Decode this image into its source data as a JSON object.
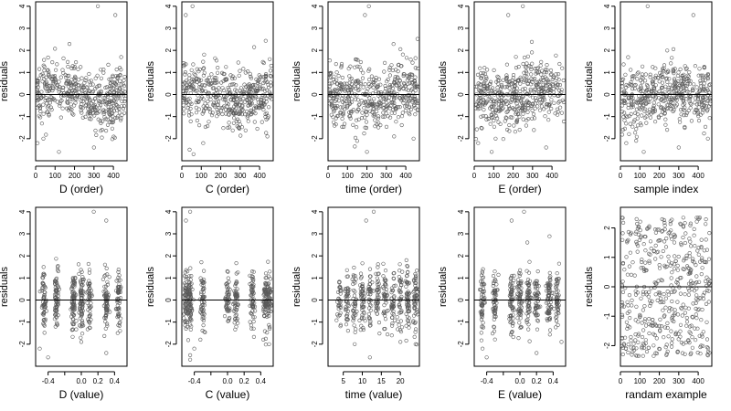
{
  "chart_data": {
    "type": "scatter",
    "grid": false,
    "point_style": "open circle",
    "panels": [
      {
        "xlabel": "D (order)",
        "ylabel": "residuals",
        "xlim": [
          0,
          470
        ],
        "xticks": [
          0,
          100,
          200,
          300,
          400
        ],
        "xticklabels": [
          "0",
          "100",
          "200",
          "300",
          "400"
        ],
        "ylim": [
          -3,
          4.2
        ],
        "yticks": [
          -2,
          -1,
          0,
          1,
          2,
          3,
          4
        ],
        "yticklabels": [
          "-2",
          "-1",
          "0",
          "1",
          "2",
          "3",
          "4"
        ],
        "refline_y": 0,
        "n_points": 470,
        "outliers": [
          [
            320,
            4.0
          ],
          [
            410,
            3.6
          ],
          [
            10,
            -2.2
          ],
          [
            40,
            -2.0
          ],
          [
            120,
            -2.6
          ],
          [
            300,
            -2.4
          ]
        ]
      },
      {
        "xlabel": "C (order)",
        "ylabel": "residuals",
        "xlim": [
          0,
          470
        ],
        "xticks": [
          0,
          100,
          200,
          300,
          400
        ],
        "xticklabels": [
          "0",
          "100",
          "200",
          "300",
          "400"
        ],
        "ylim": [
          -3,
          4.2
        ],
        "yticks": [
          -2,
          -1,
          0,
          1,
          2,
          3,
          4
        ],
        "yticklabels": [
          "-2",
          "-1",
          "0",
          "1",
          "2",
          "3",
          "4"
        ],
        "refline_y": 0,
        "n_points": 470,
        "outliers": [
          [
            55,
            4.0
          ],
          [
            20,
            3.6
          ],
          [
            40,
            -2.5
          ],
          [
            110,
            -2.2
          ],
          [
            440,
            -1.9
          ],
          [
            60,
            -2.7
          ]
        ]
      },
      {
        "xlabel": "time (order)",
        "ylabel": "residuals",
        "xlim": [
          0,
          470
        ],
        "xticks": [
          0,
          100,
          200,
          300,
          400
        ],
        "xticklabels": [
          "0",
          "100",
          "200",
          "300",
          "400"
        ],
        "ylim": [
          -3,
          4.2
        ],
        "yticks": [
          -2,
          -1,
          0,
          1,
          2,
          3,
          4
        ],
        "yticklabels": [
          "-2",
          "-1",
          "0",
          "1",
          "2",
          "3",
          "4"
        ],
        "refline_y": 0,
        "n_points": 470,
        "outliers": [
          [
            210,
            4.0
          ],
          [
            190,
            3.6
          ],
          [
            150,
            -2.1
          ],
          [
            200,
            -2.6
          ],
          [
            340,
            -1.9
          ],
          [
            440,
            -2.0
          ]
        ]
      },
      {
        "xlabel": "E (order)",
        "ylabel": "residuals",
        "xlim": [
          0,
          470
        ],
        "xticks": [
          0,
          100,
          200,
          300,
          400
        ],
        "xticklabels": [
          "0",
          "100",
          "200",
          "300",
          "400"
        ],
        "ylim": [
          -3,
          4.2
        ],
        "yticks": [
          -2,
          -1,
          0,
          1,
          2,
          3,
          4
        ],
        "yticklabels": [
          "-2",
          "-1",
          "0",
          "1",
          "2",
          "3",
          "4"
        ],
        "refline_y": 0,
        "n_points": 470,
        "outliers": [
          [
            250,
            4.0
          ],
          [
            175,
            3.6
          ],
          [
            20,
            -2.2
          ],
          [
            110,
            -2.0
          ],
          [
            370,
            -2.4
          ],
          [
            90,
            -2.6
          ]
        ]
      },
      {
        "xlabel": "sample index",
        "ylabel": "residuals",
        "xlim": [
          0,
          470
        ],
        "xticks": [
          0,
          100,
          200,
          300,
          400
        ],
        "xticklabels": [
          "0",
          "100",
          "200",
          "300",
          "400"
        ],
        "ylim": [
          -3,
          4.2
        ],
        "yticks": [
          -2,
          -1,
          0,
          1,
          2,
          3,
          4
        ],
        "yticklabels": [
          "-2",
          "-1",
          "0",
          "1",
          "2",
          "3",
          "4"
        ],
        "refline_y": 0,
        "n_points": 470,
        "outliers": [
          [
            140,
            4.0
          ],
          [
            375,
            3.6
          ],
          [
            300,
            -2.4
          ],
          [
            120,
            -2.6
          ],
          [
            30,
            -2.2
          ],
          [
            450,
            -2.0
          ]
        ]
      },
      {
        "xlabel": "D (value)",
        "ylabel": "residuals",
        "xlim": [
          -0.55,
          0.55
        ],
        "xticks": [
          -0.4,
          -0.2,
          0.0,
          0.2,
          0.4
        ],
        "xticklabels": [
          "-0.4",
          "",
          "0.0",
          "0.2",
          "0.4"
        ],
        "ylim": [
          -3,
          4.2
        ],
        "yticks": [
          -2,
          -1,
          0,
          1,
          2,
          3,
          4
        ],
        "yticklabels": [
          "-2",
          "-1",
          "0",
          "1",
          "2",
          "3",
          "4"
        ],
        "refline_y": 0,
        "n_points": 470,
        "clusters": [
          -0.45,
          -0.3,
          -0.1,
          0.0,
          0.1,
          0.3,
          0.45
        ],
        "outliers": [
          [
            0.15,
            4.0
          ],
          [
            0.3,
            3.6
          ],
          [
            -0.5,
            -2.2
          ],
          [
            -0.4,
            -2.6
          ],
          [
            0.3,
            -2.4
          ],
          [
            0.0,
            -1.9
          ]
        ]
      },
      {
        "xlabel": "C (value)",
        "ylabel": "residuals",
        "xlim": [
          -0.55,
          0.55
        ],
        "xticks": [
          -0.4,
          -0.2,
          0.0,
          0.2,
          0.4
        ],
        "xticklabels": [
          "-0.4",
          "",
          "0.0",
          "0.2",
          "0.4"
        ],
        "ylim": [
          -3,
          4.2
        ],
        "yticks": [
          -2,
          -1,
          0,
          1,
          2,
          3,
          4
        ],
        "yticklabels": [
          "-2",
          "-1",
          "0",
          "1",
          "2",
          "3",
          "4"
        ],
        "refline_y": 0,
        "n_points": 470,
        "clusters": [
          -0.5,
          -0.45,
          -0.3,
          0.0,
          0.1,
          0.3,
          0.45,
          0.5
        ],
        "outliers": [
          [
            -0.45,
            4.0
          ],
          [
            -0.5,
            3.6
          ],
          [
            -0.45,
            -2.5
          ],
          [
            -0.4,
            -2.2
          ],
          [
            -0.45,
            -2.7
          ],
          [
            0.5,
            -2.0
          ]
        ]
      },
      {
        "xlabel": "time (value)",
        "ylabel": "residuals",
        "xlim": [
          1,
          25
        ],
        "xticks": [
          5,
          10,
          15,
          20
        ],
        "xticklabels": [
          "5",
          "10",
          "15",
          "20"
        ],
        "ylim": [
          -3,
          4.2
        ],
        "yticks": [
          -2,
          -1,
          0,
          1,
          2,
          3,
          4
        ],
        "yticklabels": [
          "-2",
          "-1",
          "0",
          "1",
          "2",
          "3",
          "4"
        ],
        "refline_y": 0,
        "n_points": 470,
        "clusters": [
          4,
          6,
          8,
          10,
          12,
          14,
          16,
          18,
          20,
          22,
          24
        ],
        "outliers": [
          [
            13,
            4.0
          ],
          [
            11,
            3.6
          ],
          [
            12,
            -2.6
          ],
          [
            8,
            -2.0
          ],
          [
            24,
            -2.0
          ],
          [
            20,
            -1.9
          ]
        ]
      },
      {
        "xlabel": "E (value)",
        "ylabel": "residuals",
        "xlim": [
          -0.55,
          0.55
        ],
        "xticks": [
          -0.4,
          -0.2,
          0.0,
          0.2,
          0.4
        ],
        "xticklabels": [
          "-0.4",
          "",
          "0.0",
          "0.2",
          "0.4"
        ],
        "ylim": [
          -3,
          4.2
        ],
        "yticks": [
          -2,
          -1,
          0,
          1,
          2,
          3,
          4
        ],
        "yticklabels": [
          "-2",
          "-1",
          "0",
          "1",
          "2",
          "3",
          "4"
        ],
        "refline_y": 0,
        "n_points": 470,
        "clusters": [
          -0.45,
          -0.3,
          -0.1,
          0.0,
          0.1,
          0.2,
          0.35,
          0.45
        ],
        "outliers": [
          [
            0.05,
            4.0
          ],
          [
            -0.1,
            3.6
          ],
          [
            -0.45,
            -2.2
          ],
          [
            -0.4,
            -2.6
          ],
          [
            0.2,
            -2.4
          ],
          [
            0.5,
            -1.9
          ]
        ]
      },
      {
        "xlabel": "randam example",
        "ylabel": "residuals",
        "xlim": [
          0,
          470
        ],
        "xticks": [
          0,
          100,
          200,
          300,
          400
        ],
        "xticklabels": [
          "0",
          "100",
          "200",
          "300",
          "400"
        ],
        "ylim": [
          -2.7,
          2.7
        ],
        "yticks": [
          -2,
          -1,
          0,
          1,
          2
        ],
        "yticklabels": [
          "-2",
          "-1",
          "0",
          "1",
          "2"
        ],
        "refline_y": 0,
        "n_points": 470,
        "outliers": []
      }
    ]
  }
}
